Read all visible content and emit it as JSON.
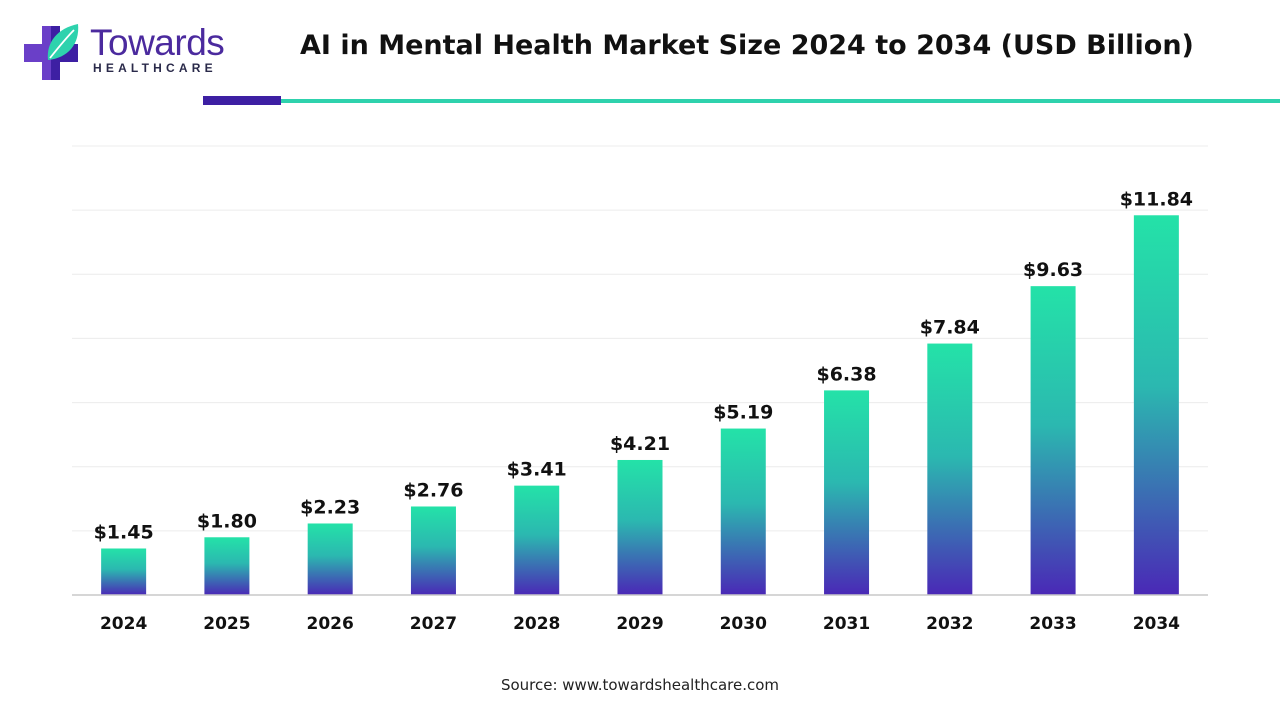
{
  "brand": {
    "name": "Towards",
    "subtitle": "HEALTHCARE",
    "logo_icon": "medical-cross-leaf-icon",
    "colors": {
      "purple": "#3d1fa3",
      "teal": "#2ed2ad"
    }
  },
  "source": "Source: www.towardshealthcare.com",
  "chart_data": {
    "type": "bar",
    "title": "AI in Mental Health Market Size 2024 to 2034 (USD Billion)",
    "xlabel": "",
    "ylabel": "",
    "categories": [
      "2024",
      "2025",
      "2026",
      "2027",
      "2028",
      "2029",
      "2030",
      "2031",
      "2032",
      "2033",
      "2034"
    ],
    "values": [
      1.45,
      1.8,
      2.23,
      2.76,
      3.41,
      4.21,
      5.19,
      6.38,
      7.84,
      9.63,
      11.84
    ],
    "value_labels": [
      "$1.45",
      "$1.80",
      "$2.23",
      "$2.76",
      "$3.41",
      "$4.21",
      "$5.19",
      "$6.38",
      "$7.84",
      "$9.63",
      "$11.84"
    ],
    "ylim": [
      0,
      14
    ],
    "grid": true,
    "legend": "none",
    "bar_gradient": {
      "top": "#24e2a8",
      "bottom": "#4a28b6"
    }
  }
}
